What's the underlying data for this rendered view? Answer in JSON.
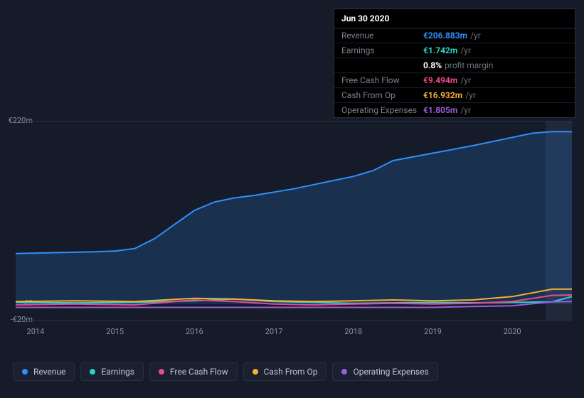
{
  "tooltip": {
    "date": "Jun 30 2020",
    "rows": [
      {
        "label": "Revenue",
        "value": "€206.883m",
        "unit": "/yr",
        "color": "#2f8ffd"
      },
      {
        "label": "Earnings",
        "value": "€1.742m",
        "unit": "/yr",
        "color": "#2ad4c2"
      },
      {
        "label": "",
        "value": "0.8%",
        "unit": "profit margin",
        "color": "#ffffff"
      },
      {
        "label": "Free Cash Flow",
        "value": "€9.494m",
        "unit": "/yr",
        "color": "#e84a8d"
      },
      {
        "label": "Cash From Op",
        "value": "€16.932m",
        "unit": "/yr",
        "color": "#f2b233"
      },
      {
        "label": "Operating Expenses",
        "value": "€1.805m",
        "unit": "/yr",
        "color": "#9b5bdd"
      }
    ]
  },
  "chart": {
    "type": "line",
    "background_color": "#151b28",
    "grid_color": "#2a3040",
    "text_color": "#8a909c",
    "y_labels": [
      {
        "text": "€220m",
        "value": 220
      },
      {
        "text": "€0",
        "value": 0
      },
      {
        "text": "-€20m",
        "value": -20
      }
    ],
    "y_range": [
      -20,
      220
    ],
    "x_labels": [
      "2014",
      "2015",
      "2016",
      "2017",
      "2018",
      "2019",
      "2020"
    ],
    "x_range": [
      2013.75,
      2020.75
    ],
    "highlight_from": 2020.42,
    "series": [
      {
        "name": "Revenue",
        "color": "#2f8ffd",
        "area": true,
        "data": [
          [
            2013.75,
            60
          ],
          [
            2014.25,
            61
          ],
          [
            2014.75,
            62
          ],
          [
            2015.0,
            63
          ],
          [
            2015.25,
            66
          ],
          [
            2015.5,
            78
          ],
          [
            2015.75,
            95
          ],
          [
            2016.0,
            112
          ],
          [
            2016.25,
            122
          ],
          [
            2016.5,
            127
          ],
          [
            2016.75,
            130
          ],
          [
            2017.0,
            134
          ],
          [
            2017.25,
            138
          ],
          [
            2017.5,
            143
          ],
          [
            2018.0,
            153
          ],
          [
            2018.25,
            160
          ],
          [
            2018.5,
            172
          ],
          [
            2019.0,
            181
          ],
          [
            2019.5,
            190
          ],
          [
            2020.0,
            200
          ],
          [
            2020.25,
            205
          ],
          [
            2020.5,
            207
          ],
          [
            2020.75,
            207
          ]
        ]
      },
      {
        "name": "Earnings",
        "color": "#2ad4c2",
        "area": false,
        "data": [
          [
            2013.75,
            1
          ],
          [
            2014.5,
            0.5
          ],
          [
            2015.25,
            1
          ],
          [
            2016.0,
            3
          ],
          [
            2016.5,
            5
          ],
          [
            2017.0,
            2
          ],
          [
            2017.5,
            1
          ],
          [
            2018.0,
            0
          ],
          [
            2018.5,
            0.5
          ],
          [
            2019.0,
            1
          ],
          [
            2019.5,
            0.5
          ],
          [
            2020.0,
            1
          ],
          [
            2020.5,
            1.7
          ],
          [
            2020.75,
            8
          ]
        ]
      },
      {
        "name": "Free Cash Flow",
        "color": "#e84a8d",
        "area": false,
        "data": [
          [
            2013.75,
            -2
          ],
          [
            2014.5,
            -1
          ],
          [
            2015.25,
            -2
          ],
          [
            2016.0,
            4
          ],
          [
            2016.5,
            2
          ],
          [
            2017.0,
            -1
          ],
          [
            2017.5,
            -2
          ],
          [
            2018.0,
            -1
          ],
          [
            2018.5,
            0
          ],
          [
            2019.0,
            -1
          ],
          [
            2019.5,
            0
          ],
          [
            2020.0,
            2
          ],
          [
            2020.5,
            9.5
          ],
          [
            2020.75,
            10
          ]
        ]
      },
      {
        "name": "Cash From Op",
        "color": "#f2b233",
        "area": false,
        "data": [
          [
            2013.75,
            2
          ],
          [
            2014.5,
            3
          ],
          [
            2015.25,
            2
          ],
          [
            2016.0,
            6
          ],
          [
            2016.5,
            5
          ],
          [
            2017.0,
            3
          ],
          [
            2017.5,
            2
          ],
          [
            2018.0,
            3
          ],
          [
            2018.5,
            4
          ],
          [
            2019.0,
            3
          ],
          [
            2019.5,
            4
          ],
          [
            2020.0,
            8
          ],
          [
            2020.5,
            16.9
          ],
          [
            2020.75,
            17
          ]
        ]
      },
      {
        "name": "Operating Expenses",
        "color": "#9b5bdd",
        "area": false,
        "data": [
          [
            2013.75,
            -5
          ],
          [
            2014.5,
            -5
          ],
          [
            2015.25,
            -5
          ],
          [
            2016.0,
            -5
          ],
          [
            2016.5,
            -5
          ],
          [
            2017.0,
            -5
          ],
          [
            2017.5,
            -5
          ],
          [
            2018.0,
            -5
          ],
          [
            2018.5,
            -5
          ],
          [
            2019.0,
            -5
          ],
          [
            2019.5,
            -4
          ],
          [
            2020.0,
            -3
          ],
          [
            2020.5,
            1.8
          ],
          [
            2020.75,
            2
          ]
        ]
      }
    ]
  },
  "legend": [
    {
      "label": "Revenue",
      "color": "#2f8ffd"
    },
    {
      "label": "Earnings",
      "color": "#2ad4c2"
    },
    {
      "label": "Free Cash Flow",
      "color": "#e84a8d"
    },
    {
      "label": "Cash From Op",
      "color": "#f2b233"
    },
    {
      "label": "Operating Expenses",
      "color": "#9b5bdd"
    }
  ]
}
